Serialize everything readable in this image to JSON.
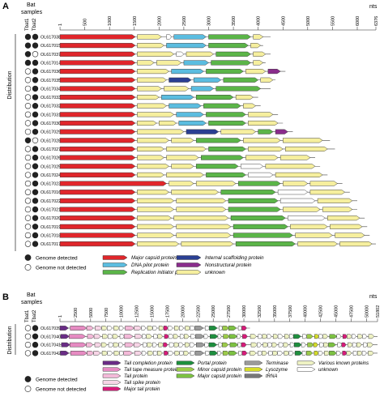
{
  "panel_a": {
    "label": "A",
    "header": {
      "bat": "Bat",
      "samples": "samples",
      "tbat1": "Tbat1",
      "tbat2": "Tbat2",
      "nts": "nts"
    },
    "side_label": "Distribution",
    "ticks": [
      "1",
      "500",
      "1000",
      "1500",
      "2000",
      "2500",
      "3000",
      "3500",
      "4000",
      "4500",
      "5000",
      "5500",
      "6000",
      "6376"
    ],
    "ruler_max": 6376,
    "rows": [
      {
        "id": "OL617038",
        "t1": 1,
        "t2": 1,
        "len": 4250,
        "genes": [
          [
            1,
            1520,
            "red"
          ],
          [
            1560,
            2050,
            "yellow"
          ],
          [
            2150,
            2250,
            "white"
          ],
          [
            2300,
            2950,
            "blue"
          ],
          [
            3000,
            3850,
            "green"
          ],
          [
            3900,
            4100,
            "yellow"
          ]
        ]
      },
      {
        "id": "OL617015",
        "t1": 1,
        "t2": 1,
        "len": 4100,
        "genes": [
          [
            1,
            1520,
            "red"
          ],
          [
            1560,
            2100,
            "yellow"
          ],
          [
            2150,
            2950,
            "blue"
          ],
          [
            3000,
            3800,
            "green"
          ],
          [
            3850,
            4050,
            "yellow"
          ]
        ]
      },
      {
        "id": "OL617037",
        "t1": 1,
        "t2": 0,
        "len": 4250,
        "genes": [
          [
            1,
            1520,
            "red"
          ],
          [
            1560,
            2300,
            "yellow"
          ],
          [
            2350,
            2500,
            "white"
          ],
          [
            2550,
            3100,
            "yellow"
          ],
          [
            3150,
            3850,
            "green"
          ],
          [
            3900,
            4150,
            "yellow"
          ]
        ]
      },
      {
        "id": "OL617014",
        "t1": 1,
        "t2": 1,
        "len": 4150,
        "genes": [
          [
            1,
            1520,
            "red"
          ],
          [
            1560,
            1900,
            "yellow"
          ],
          [
            1950,
            2450,
            "yellow"
          ],
          [
            2500,
            3000,
            "blue"
          ],
          [
            3050,
            3850,
            "green"
          ],
          [
            3900,
            4100,
            "yellow"
          ]
        ]
      },
      {
        "id": "OL617036",
        "t1": 0,
        "t2": 1,
        "len": 4550,
        "genes": [
          [
            1,
            1520,
            "red"
          ],
          [
            1560,
            2200,
            "yellow"
          ],
          [
            2250,
            2900,
            "blue"
          ],
          [
            2950,
            3700,
            "green"
          ],
          [
            3750,
            4150,
            "yellow"
          ],
          [
            4200,
            4450,
            "purple"
          ]
        ]
      },
      {
        "id": "OL617035",
        "t1": 0,
        "t2": 1,
        "len": 4350,
        "genes": [
          [
            1,
            1520,
            "red"
          ],
          [
            1560,
            2150,
            "yellow"
          ],
          [
            2200,
            2650,
            "navy"
          ],
          [
            2700,
            3250,
            "blue"
          ],
          [
            3300,
            4000,
            "green"
          ],
          [
            4050,
            4300,
            "yellow"
          ]
        ]
      },
      {
        "id": "OL617034",
        "t1": 0,
        "t2": 1,
        "len": 4250,
        "genes": [
          [
            1,
            1520,
            "red"
          ],
          [
            1560,
            2050,
            "yellow"
          ],
          [
            2100,
            2600,
            "yellow"
          ],
          [
            2650,
            3100,
            "blue"
          ],
          [
            3150,
            4050,
            "green"
          ]
        ]
      },
      {
        "id": "OL617033",
        "t1": 0,
        "t2": 1,
        "len": 4000,
        "genes": [
          [
            1,
            1520,
            "red"
          ],
          [
            1560,
            2000,
            "yellow"
          ],
          [
            2050,
            2700,
            "blue"
          ],
          [
            2750,
            3500,
            "green"
          ],
          [
            3550,
            3900,
            "yellow"
          ]
        ]
      },
      {
        "id": "OL617032",
        "t1": 0,
        "t2": 1,
        "len": 4050,
        "genes": [
          [
            1,
            1520,
            "red"
          ],
          [
            1560,
            2150,
            "yellow"
          ],
          [
            2200,
            2850,
            "blue"
          ],
          [
            2900,
            3650,
            "green"
          ],
          [
            3700,
            3950,
            "yellow"
          ]
        ]
      },
      {
        "id": "OL617031",
        "t1": 0,
        "t2": 1,
        "len": 4400,
        "genes": [
          [
            1,
            1520,
            "red"
          ],
          [
            1560,
            2300,
            "yellow"
          ],
          [
            2350,
            2900,
            "blue"
          ],
          [
            2950,
            3750,
            "green"
          ],
          [
            3800,
            4300,
            "yellow"
          ]
        ]
      },
      {
        "id": "OL617030",
        "t1": 0,
        "t2": 1,
        "len": 4500,
        "genes": [
          [
            1,
            1520,
            "red"
          ],
          [
            1560,
            1950,
            "yellow"
          ],
          [
            2000,
            2350,
            "yellow"
          ],
          [
            2400,
            2950,
            "blue"
          ],
          [
            3000,
            3750,
            "green"
          ],
          [
            3800,
            4400,
            "yellow"
          ]
        ]
      },
      {
        "id": "OL617029",
        "t1": 0,
        "t2": 1,
        "len": 4700,
        "genes": [
          [
            1,
            1520,
            "red"
          ],
          [
            1560,
            2500,
            "yellow"
          ],
          [
            2550,
            3200,
            "navy"
          ],
          [
            3250,
            3950,
            "yellow"
          ],
          [
            4000,
            4300,
            "green"
          ],
          [
            4350,
            4600,
            "purple"
          ]
        ]
      },
      {
        "id": "OL617028",
        "t1": 1,
        "t2": 0,
        "len": 5450,
        "genes": [
          [
            1,
            1520,
            "red"
          ],
          [
            1560,
            2200,
            "yellow"
          ],
          [
            2250,
            2700,
            "yellow"
          ],
          [
            2750,
            3650,
            "green"
          ],
          [
            3700,
            4450,
            "yellow"
          ],
          [
            4500,
            5300,
            "yellow"
          ]
        ]
      },
      {
        "id": "OL617027",
        "t1": 0,
        "t2": 1,
        "len": 5550,
        "genes": [
          [
            1,
            1520,
            "red"
          ],
          [
            1560,
            2100,
            "yellow"
          ],
          [
            2150,
            2950,
            "yellow"
          ],
          [
            3000,
            3750,
            "green"
          ],
          [
            3800,
            4500,
            "yellow"
          ],
          [
            4550,
            5400,
            "yellow"
          ]
        ]
      },
      {
        "id": "OL617026",
        "t1": 0,
        "t2": 1,
        "len": 5150,
        "genes": [
          [
            1,
            1520,
            "red"
          ],
          [
            1560,
            2100,
            "yellow"
          ],
          [
            2150,
            2800,
            "yellow"
          ],
          [
            2850,
            3700,
            "green"
          ],
          [
            3750,
            4400,
            "yellow"
          ],
          [
            4450,
            5050,
            "yellow"
          ]
        ]
      },
      {
        "id": "OL617025",
        "t1": 0,
        "t2": 1,
        "len": 5250,
        "genes": [
          [
            1,
            1520,
            "red"
          ],
          [
            1560,
            2200,
            "yellow"
          ],
          [
            2250,
            2700,
            "yellow"
          ],
          [
            2750,
            3600,
            "green"
          ],
          [
            3650,
            4100,
            "white"
          ],
          [
            4150,
            5150,
            "yellow"
          ]
        ]
      },
      {
        "id": "OL617024",
        "t1": 0,
        "t2": 1,
        "len": 5400,
        "genes": [
          [
            1,
            1520,
            "red"
          ],
          [
            1560,
            2100,
            "yellow"
          ],
          [
            2150,
            2900,
            "yellow"
          ],
          [
            2950,
            3750,
            "green"
          ],
          [
            3800,
            4300,
            "white"
          ],
          [
            4350,
            5300,
            "yellow"
          ]
        ]
      },
      {
        "id": "OL617023",
        "t1": 0,
        "t2": 1,
        "len": 5700,
        "genes": [
          [
            1,
            2150,
            "red"
          ],
          [
            2200,
            2700,
            "yellow"
          ],
          [
            2750,
            3550,
            "yellow"
          ],
          [
            3600,
            4450,
            "green"
          ],
          [
            4500,
            5000,
            "yellow"
          ],
          [
            5050,
            5600,
            "yellow"
          ]
        ]
      },
      {
        "id": "OL617016",
        "t1": 0,
        "t2": 1,
        "len": 5850,
        "genes": [
          [
            1,
            1520,
            "red"
          ],
          [
            1560,
            2200,
            "yellow"
          ],
          [
            2250,
            3200,
            "yellow"
          ],
          [
            3250,
            4350,
            "green"
          ],
          [
            4400,
            5000,
            "white"
          ],
          [
            5050,
            5750,
            "yellow"
          ]
        ]
      },
      {
        "id": "OL617022",
        "t1": 0,
        "t2": 1,
        "len": 6000,
        "genes": [
          [
            1,
            1520,
            "red"
          ],
          [
            1560,
            2300,
            "yellow"
          ],
          [
            2350,
            3350,
            "yellow"
          ],
          [
            3400,
            4400,
            "green"
          ],
          [
            4450,
            5150,
            "white"
          ],
          [
            5200,
            5900,
            "yellow"
          ]
        ]
      },
      {
        "id": "OL617021",
        "t1": 0,
        "t2": 1,
        "len": 6000,
        "genes": [
          [
            1,
            1520,
            "red"
          ],
          [
            1560,
            2300,
            "yellow"
          ],
          [
            2350,
            3350,
            "yellow"
          ],
          [
            3400,
            4450,
            "green"
          ],
          [
            4500,
            5250,
            "yellow"
          ],
          [
            5300,
            5900,
            "yellow"
          ]
        ]
      },
      {
        "id": "OL617020",
        "t1": 0,
        "t2": 1,
        "len": 6150,
        "genes": [
          [
            1,
            1520,
            "red"
          ],
          [
            1560,
            2250,
            "yellow"
          ],
          [
            2300,
            3400,
            "yellow"
          ],
          [
            3450,
            4550,
            "green"
          ],
          [
            4600,
            5350,
            "white"
          ],
          [
            5400,
            6050,
            "yellow"
          ]
        ]
      },
      {
        "id": "OL617019",
        "t1": 0,
        "t2": 1,
        "len": 6200,
        "genes": [
          [
            1,
            1520,
            "red"
          ],
          [
            1560,
            2300,
            "yellow"
          ],
          [
            2350,
            3450,
            "yellow"
          ],
          [
            3500,
            4600,
            "green"
          ],
          [
            4650,
            5400,
            "yellow"
          ],
          [
            5450,
            6100,
            "yellow"
          ]
        ]
      },
      {
        "id": "OL617018",
        "t1": 0,
        "t2": 1,
        "len": 6250,
        "genes": [
          [
            1,
            1520,
            "red"
          ],
          [
            1560,
            2300,
            "yellow"
          ],
          [
            2350,
            3450,
            "yellow"
          ],
          [
            3500,
            4700,
            "green"
          ],
          [
            4750,
            5500,
            "yellow"
          ],
          [
            5550,
            6150,
            "yellow"
          ]
        ]
      },
      {
        "id": "OL617017",
        "t1": 0,
        "t2": 1,
        "len": 6376,
        "genes": [
          [
            1,
            1520,
            "red"
          ],
          [
            1560,
            2400,
            "yellow"
          ],
          [
            2450,
            3500,
            "yellow"
          ],
          [
            3550,
            4750,
            "green"
          ],
          [
            4800,
            5600,
            "yellow"
          ],
          [
            5650,
            6300,
            "yellow"
          ]
        ]
      }
    ],
    "legend_markers": [
      "Genome detected",
      "Genome not detected"
    ],
    "legend": [
      {
        "key": "red",
        "label": "Major capsid protein"
      },
      {
        "key": "blue",
        "label": "DNA pilot protein"
      },
      {
        "key": "green",
        "label": "Replication initiator protein"
      },
      {
        "key": "navy",
        "label": "Internal scaffolding protein"
      },
      {
        "key": "purple",
        "label": "Nonstructural protein"
      },
      {
        "key": "yellow",
        "label": "unknown"
      }
    ]
  },
  "panel_b": {
    "label": "B",
    "header": {
      "bat": "Bat",
      "samples": "samples",
      "tbat1": "Tbat1",
      "tbat2": "Tbat2",
      "nts": "nts"
    },
    "side_label": "Distribution",
    "ticks": [
      "1",
      "2500",
      "5000",
      "7500",
      "10000",
      "12500",
      "15000",
      "17500",
      "20000",
      "22500",
      "25000",
      "27500",
      "30000",
      "32500",
      "35000",
      "37500",
      "40000",
      "42500",
      "45000",
      "47500",
      "50000",
      "51802"
    ],
    "rows": [
      {
        "id": "OL617039",
        "t1": 0,
        "t2": 1,
        "len": 31000
      },
      {
        "id": "OL617040",
        "t1": 0,
        "t2": 1,
        "len": 51802
      },
      {
        "id": "OL617041",
        "t1": 0,
        "t2": 1,
        "len": 51802
      },
      {
        "id": "OL617042",
        "t1": 0,
        "t2": 1,
        "len": 51802
      }
    ],
    "legend_markers": [
      "Genome detected",
      "Genome not detected"
    ],
    "legend": [
      {
        "key": "tcomp",
        "label": "Tail completion protein"
      },
      {
        "key": "ttape",
        "label": "Tail tape measure protein"
      },
      {
        "key": "tail",
        "label": "Tail protein"
      },
      {
        "key": "tspike",
        "label": "Tail spike protein"
      },
      {
        "key": "mtail",
        "label": "Major tail protein"
      },
      {
        "key": "portal",
        "label": "Portal protein"
      },
      {
        "key": "minor",
        "label": "Minor capsid protein"
      },
      {
        "key": "majorb",
        "label": "Major capsid protein"
      },
      {
        "key": "term",
        "label": "Terminase"
      },
      {
        "key": "lyso",
        "label": "Lysozyme"
      },
      {
        "key": "trna",
        "label": "tRNA"
      },
      {
        "key": "various",
        "label": "Various known proteins"
      },
      {
        "key": "unknown",
        "label": "unknown"
      }
    ]
  },
  "colors": {
    "red": "#e0262b",
    "blue": "#5bbde0",
    "green": "#5bb548",
    "navy": "#2a3f93",
    "purple": "#8a2c8c",
    "yellow": "#f6ef9e",
    "white": "#ffffff",
    "tcomp": "#6a2c86",
    "ttape": "#e68bc2",
    "tail": "#f3b9d8",
    "tspike": "#f7d5e6",
    "mtail": "#d81b7a",
    "portal": "#1e8f3e",
    "minor": "#9ccb4a",
    "majorb": "#7cc142",
    "term": "#9a9a9a",
    "lyso": "#d6dd2a",
    "trna": "#777777",
    "various": "#eef2c3",
    "unknown": "#ffffff",
    "filled": "#222222"
  }
}
